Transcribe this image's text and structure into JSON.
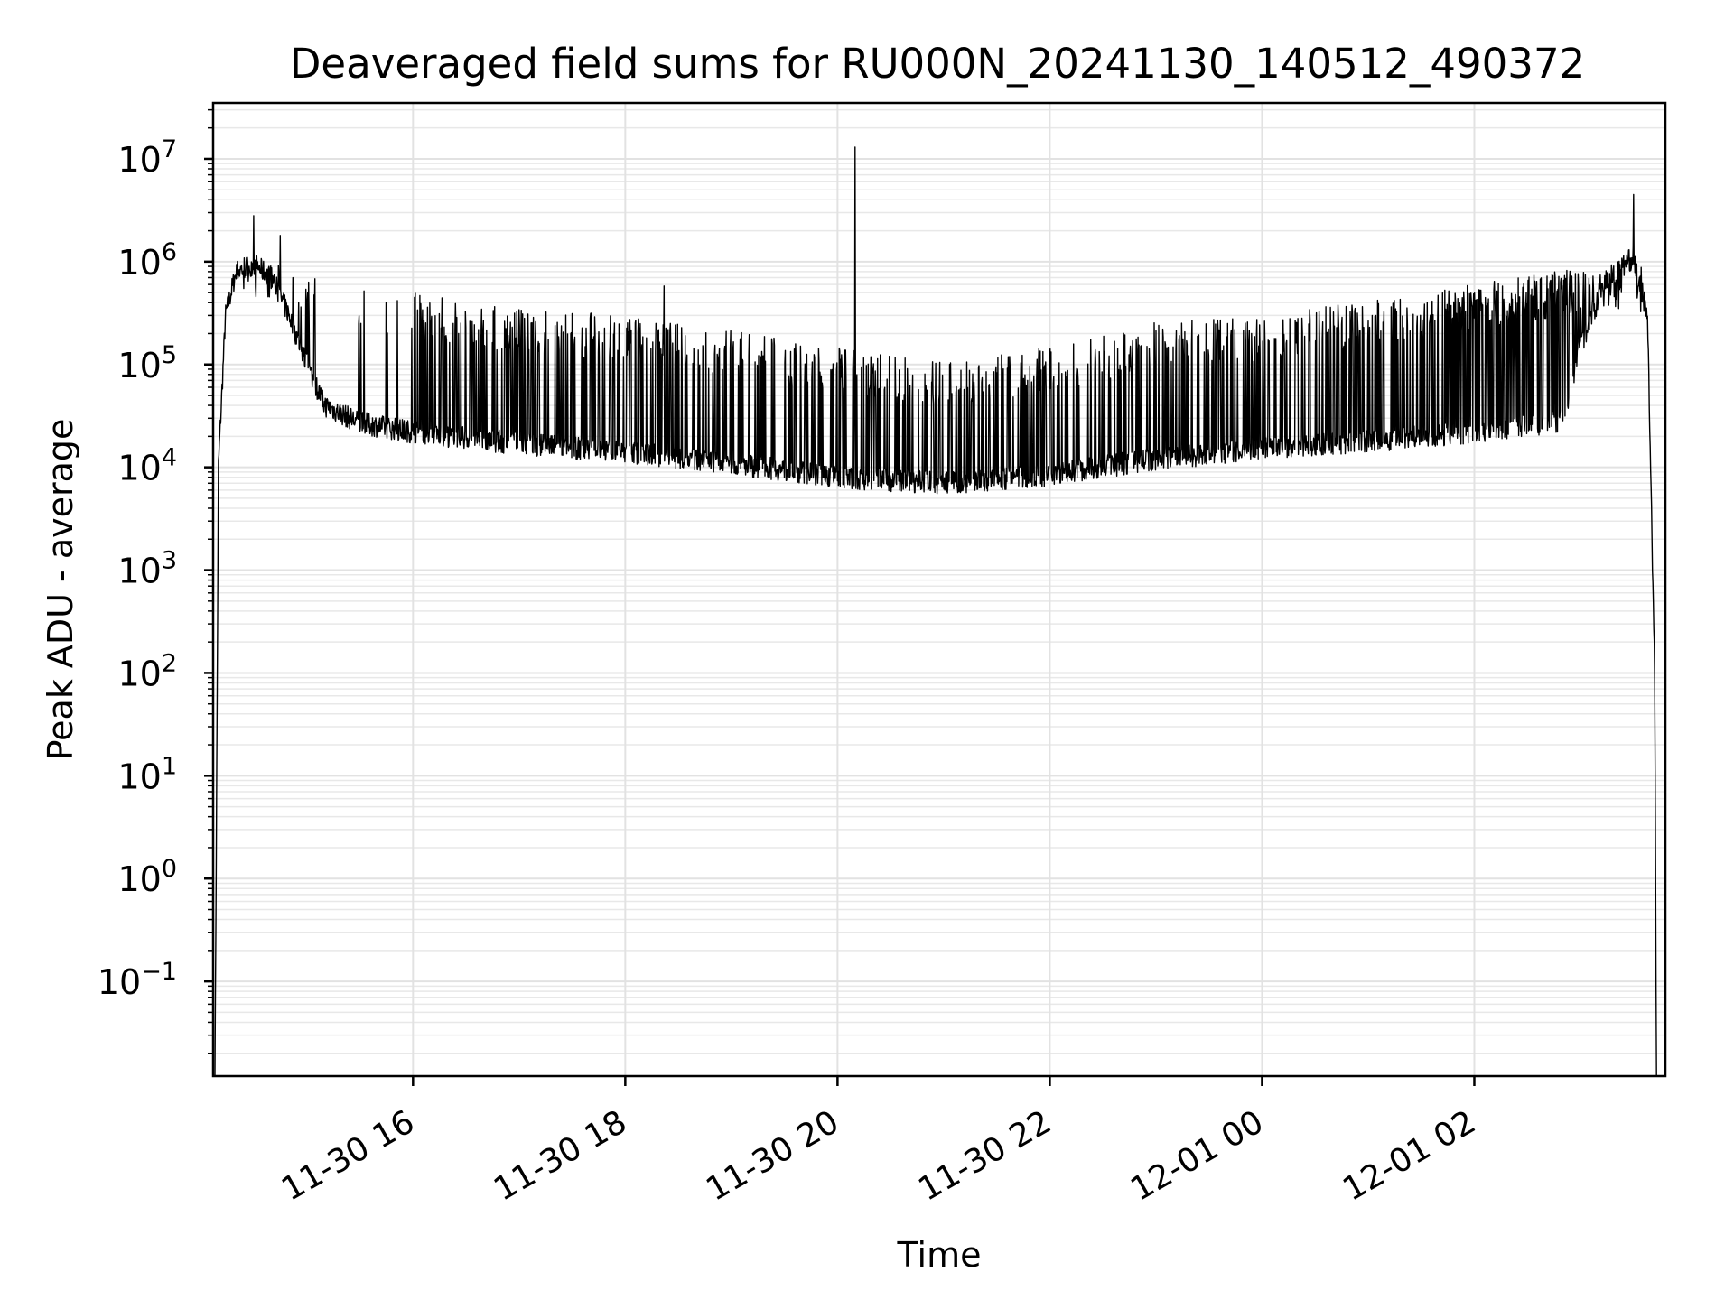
{
  "chart_data": {
    "type": "line",
    "title": "Deaveraged field sums for RU000N_20241130_140512_490372",
    "xlabel": "Time",
    "ylabel": "Peak ADU - average",
    "yscale": "log",
    "ylim": [
      0.012,
      35000000
    ],
    "xlim": [
      "2024-11-30 14:07",
      "2024-12-01 03:48"
    ],
    "x_ticks": [
      {
        "value": "2024-11-30 16:00",
        "label": "11-30 16"
      },
      {
        "value": "2024-11-30 18:00",
        "label": "11-30 18"
      },
      {
        "value": "2024-11-30 20:00",
        "label": "11-30 20"
      },
      {
        "value": "2024-11-30 22:00",
        "label": "11-30 22"
      },
      {
        "value": "2024-12-01 00:00",
        "label": "12-01 00"
      },
      {
        "value": "2024-12-01 02:00",
        "label": "12-01 02"
      }
    ],
    "y_ticks": [
      {
        "value": 0.1,
        "base": "10",
        "exp": "−1"
      },
      {
        "value": 1,
        "base": "10",
        "exp": "0"
      },
      {
        "value": 10,
        "base": "10",
        "exp": "1"
      },
      {
        "value": 100,
        "base": "10",
        "exp": "2"
      },
      {
        "value": 1000,
        "base": "10",
        "exp": "3"
      },
      {
        "value": 10000,
        "base": "10",
        "exp": "4"
      },
      {
        "value": 100000,
        "base": "10",
        "exp": "5"
      },
      {
        "value": 1000000,
        "base": "10",
        "exp": "6"
      },
      {
        "value": 10000000,
        "base": "10",
        "exp": "7"
      }
    ],
    "grid": true,
    "line_color": "#000000",
    "series": [
      {
        "baseline": [
          [
            "2024-11-30 14:08",
            0.01
          ],
          [
            "2024-11-30 14:10",
            10000
          ],
          [
            "2024-11-30 14:14",
            300000
          ],
          [
            "2024-11-30 14:20",
            800000
          ],
          [
            "2024-11-30 14:30",
            950000
          ],
          [
            "2024-11-30 14:40",
            700000
          ],
          [
            "2024-11-30 14:50",
            300000
          ],
          [
            "2024-11-30 15:00",
            100000
          ],
          [
            "2024-11-30 15:10",
            40000
          ],
          [
            "2024-11-30 15:30",
            27000
          ],
          [
            "2024-11-30 16:00",
            22000
          ],
          [
            "2024-11-30 17:00",
            17000
          ],
          [
            "2024-11-30 18:00",
            14000
          ],
          [
            "2024-11-30 19:00",
            11000
          ],
          [
            "2024-11-30 20:00",
            8000
          ],
          [
            "2024-11-30 21:00",
            7000
          ],
          [
            "2024-11-30 22:00",
            8500
          ],
          [
            "2024-11-30 23:00",
            12000
          ],
          [
            "2024-12-01 00:00",
            15000
          ],
          [
            "2024-12-01 01:00",
            18000
          ],
          [
            "2024-12-01 02:00",
            22000
          ],
          [
            "2024-12-01 02:50",
            28000
          ],
          [
            "2024-12-01 03:00",
            150000
          ],
          [
            "2024-12-01 03:15",
            700000
          ],
          [
            "2024-12-01 03:30",
            1100000
          ],
          [
            "2024-12-01 03:38",
            300000
          ],
          [
            "2024-12-01 03:42",
            90
          ],
          [
            "2024-12-01 03:43",
            0.01
          ]
        ],
        "spike_envelope": [
          [
            "2024-11-30 14:15",
            1500000
          ],
          [
            "2024-11-30 15:00",
            700000
          ],
          [
            "2024-11-30 16:00",
            500000
          ],
          [
            "2024-11-30 17:00",
            350000
          ],
          [
            "2024-11-30 18:00",
            300000
          ],
          [
            "2024-11-30 19:00",
            220000
          ],
          [
            "2024-11-30 20:00",
            150000
          ],
          [
            "2024-11-30 21:00",
            110000
          ],
          [
            "2024-11-30 22:00",
            150000
          ],
          [
            "2024-11-30 23:00",
            260000
          ],
          [
            "2024-12-01 00:00",
            300000
          ],
          [
            "2024-12-01 01:00",
            420000
          ],
          [
            "2024-12-01 02:00",
            600000
          ],
          [
            "2024-12-01 03:00",
            900000
          ]
        ],
        "peaks": [
          [
            "2024-11-30 14:30",
            2800000
          ],
          [
            "2024-11-30 14:45",
            1800000
          ],
          [
            "2024-11-30 18:22",
            580000
          ],
          [
            "2024-11-30 20:10",
            13000000
          ],
          [
            "2024-12-01 03:30",
            4500000
          ]
        ]
      }
    ]
  }
}
